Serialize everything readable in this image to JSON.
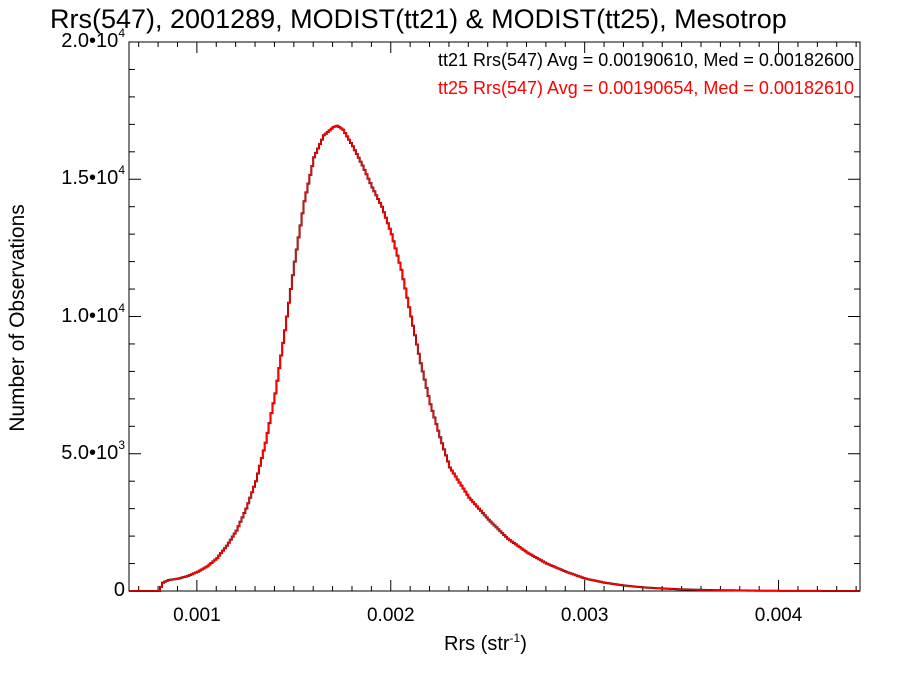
{
  "chart_data": {
    "type": "line",
    "title": "Rrs(547), 2001289, MODIST(tt21) & MODIST(tt25), Mesotrop",
    "xlabel_base": "Rrs (str",
    "xlabel_sup": "-1",
    "xlabel_end": ")",
    "ylabel": "Number of Observations",
    "xlim": [
      0.00065,
      0.00442
    ],
    "ylim": [
      0,
      20000
    ],
    "xticks": [
      {
        "value": 0.001,
        "label": "0.001"
      },
      {
        "value": 0.002,
        "label": "0.002"
      },
      {
        "value": 0.003,
        "label": "0.003"
      },
      {
        "value": 0.004,
        "label": "0.004"
      }
    ],
    "yticks": [
      {
        "value": 0,
        "base": "0",
        "exp": ""
      },
      {
        "value": 5000,
        "base": "5.0•10",
        "exp": "3"
      },
      {
        "value": 10000,
        "base": "1.0•10",
        "exp": "4"
      },
      {
        "value": 15000,
        "base": "1.5•10",
        "exp": "4"
      },
      {
        "value": 20000,
        "base": "2.0•10",
        "exp": "4"
      }
    ],
    "stats": [
      {
        "text": "tt21 Rrs(547) Avg = 0.00190610, Med = 0.00182600",
        "color": "#000000"
      },
      {
        "text": "tt25 Rrs(547) Avg = 0.00190654, Med = 0.00182610",
        "color": "#ff0000"
      }
    ],
    "bin_width": 1e-05,
    "series": [
      {
        "color": "#000000",
        "x": [
          0.0007,
          0.0008,
          0.00082,
          0.00085,
          0.0009,
          0.00095,
          0.001,
          0.00105,
          0.0011,
          0.00115,
          0.0012,
          0.00125,
          0.0013,
          0.00135,
          0.0014,
          0.00145,
          0.0015,
          0.00155,
          0.0016,
          0.00165,
          0.0017,
          0.00172,
          0.00175,
          0.0018,
          0.00185,
          0.0019,
          0.00195,
          0.002,
          0.00205,
          0.0021,
          0.00215,
          0.0022,
          0.00225,
          0.0023,
          0.0024,
          0.0025,
          0.0026,
          0.0027,
          0.0028,
          0.0029,
          0.003,
          0.0031,
          0.0032,
          0.0033,
          0.0034,
          0.0035,
          0.0036,
          0.0037,
          0.0038,
          0.0039,
          0.004,
          0.0042,
          0.0044
        ],
        "y": [
          0,
          0,
          300,
          400,
          450,
          550,
          700,
          900,
          1200,
          1650,
          2200,
          3000,
          4000,
          5400,
          7200,
          9500,
          12000,
          14200,
          15800,
          16600,
          16900,
          16950,
          16800,
          16200,
          15500,
          14700,
          14000,
          13000,
          11700,
          10000,
          8300,
          6800,
          5600,
          4500,
          3400,
          2600,
          1900,
          1400,
          1000,
          700,
          450,
          300,
          200,
          130,
          90,
          60,
          40,
          30,
          20,
          10,
          5,
          2,
          0
        ]
      },
      {
        "color": "#ff0000",
        "x": [
          0.0007,
          0.0008,
          0.00082,
          0.00085,
          0.0009,
          0.00095,
          0.001,
          0.00105,
          0.0011,
          0.00115,
          0.0012,
          0.00125,
          0.0013,
          0.00135,
          0.0014,
          0.00145,
          0.0015,
          0.00155,
          0.0016,
          0.00165,
          0.0017,
          0.00172,
          0.00175,
          0.0018,
          0.00185,
          0.0019,
          0.00195,
          0.002,
          0.00205,
          0.0021,
          0.00215,
          0.0022,
          0.00225,
          0.0023,
          0.0024,
          0.0025,
          0.0026,
          0.0027,
          0.0028,
          0.0029,
          0.003,
          0.0031,
          0.0032,
          0.0033,
          0.0034,
          0.0035,
          0.0036,
          0.0037,
          0.0038,
          0.0039,
          0.004,
          0.0042,
          0.0044
        ],
        "y": [
          0,
          0,
          300,
          400,
          450,
          550,
          700,
          900,
          1200,
          1650,
          2200,
          3000,
          4000,
          5400,
          7200,
          9500,
          12000,
          14200,
          15800,
          16600,
          16900,
          16950,
          16800,
          16200,
          15500,
          14700,
          14000,
          13000,
          11700,
          10000,
          8300,
          6800,
          5600,
          4500,
          3400,
          2600,
          1900,
          1400,
          1000,
          700,
          450,
          300,
          200,
          130,
          90,
          60,
          40,
          30,
          20,
          10,
          5,
          2,
          0
        ]
      }
    ]
  }
}
